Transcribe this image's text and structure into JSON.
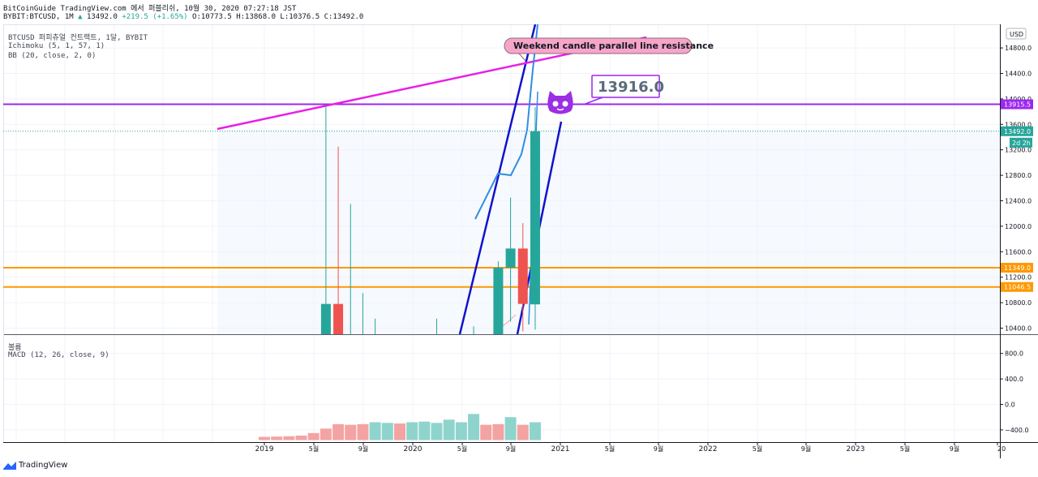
{
  "header": {
    "line1": "BitCoinGuide TradingView.com 에서 퍼블리쉬, 10월 30, 2020 07:27:18 JST",
    "symbol": "BYBIT:BTCUSD, 1M",
    "last": "13492.0",
    "change": "+219.5 (+1.65%)",
    "ohlc": "O:10773.5 H:13868.0 L:10376.5 C:13492.0"
  },
  "legends": {
    "title": "BTCUSD 퍼피츄얼 컨트랙트, 1달, BYBIT",
    "ichimoku": "Ichimoku (5, 1, 57, 1)",
    "bb": "BB (20, close, 2, 0)",
    "volume": "볼륨",
    "macd": "MACD (12, 26, close, 9)"
  },
  "annotations": {
    "callout": "Weekend candle parallel line resistance",
    "price_label": "13916.0"
  },
  "currency_badge": "USD",
  "watermark": "TradingView",
  "colors": {
    "bull": "#26a69a",
    "bear": "#ef5350",
    "magenta": "#e91ee6",
    "violet": "#9c27f0",
    "orange": "#ff9800",
    "blue_channel": "#1212cc",
    "bb_line": "#2f8fe0",
    "callout_fill": "#f6a5c8"
  },
  "chart_data": {
    "type": "candlestick",
    "price_axis": {
      "ticks": [
        10400,
        10800,
        11200,
        11600,
        12000,
        12400,
        12800,
        13200,
        13600,
        14000,
        14400,
        14800
      ]
    },
    "x_axis": {
      "labels": [
        "2019",
        "5월",
        "9월",
        "2020",
        "5월",
        "9월",
        "2021",
        "5월",
        "9월",
        "2022",
        "5월",
        "9월",
        "2023",
        "5월",
        "9월",
        "20"
      ]
    },
    "price_levels": [
      {
        "value": 13915.5,
        "label": "13915.5",
        "color": "#9c27f0"
      },
      {
        "value": 13492.0,
        "label": "13492.0",
        "color": "#26a69a",
        "sublabel": "2d 2h"
      },
      {
        "value": 11349.0,
        "label": "11349.0",
        "color": "#ff9800"
      },
      {
        "value": 11046.5,
        "label": "11046.5",
        "color": "#ff9800"
      }
    ],
    "candles": [
      {
        "month": "2019-05",
        "open": 10300,
        "close": 10780,
        "high": 13900,
        "low": 10300
      },
      {
        "month": "2019-06",
        "open": 10780,
        "close": 10300,
        "high": 13250,
        "low": 10300
      },
      {
        "month": "2019-07",
        "open": 10300,
        "close": 10300,
        "high": 12350,
        "low": 10300
      },
      {
        "month": "2019-08",
        "open": 10300,
        "close": 10300,
        "high": 10950,
        "low": 10300
      },
      {
        "month": "2019-09",
        "open": 10300,
        "close": 10300,
        "high": 10550,
        "low": 10300
      },
      {
        "month": "2020-02",
        "open": 10300,
        "close": 10300,
        "high": 10550,
        "low": 10300
      },
      {
        "month": "2020-05",
        "open": 10300,
        "close": 10300,
        "high": 10430,
        "low": 10300
      },
      {
        "month": "2020-07",
        "open": 10300,
        "close": 11350,
        "high": 11450,
        "low": 10300
      },
      {
        "month": "2020-08",
        "open": 11350,
        "close": 11650,
        "high": 12450,
        "low": 10500
      },
      {
        "month": "2020-09",
        "open": 11650,
        "close": 10780,
        "high": 12050,
        "low": 10350
      },
      {
        "month": "2020-10",
        "open": 10773.5,
        "close": 13492.0,
        "high": 13868.0,
        "low": 10376.5
      }
    ],
    "macd_axis": {
      "ticks": [
        800,
        400,
        0,
        -400
      ]
    },
    "macd_histogram": [
      {
        "month": "2018-12",
        "value": -510
      },
      {
        "month": "2019-01",
        "value": -505
      },
      {
        "month": "2019-02",
        "value": -500
      },
      {
        "month": "2019-03",
        "value": -490
      },
      {
        "month": "2019-04",
        "value": -450
      },
      {
        "month": "2019-05",
        "value": -380
      },
      {
        "month": "2019-06",
        "value": -310
      },
      {
        "month": "2019-07",
        "value": -320
      },
      {
        "month": "2019-08",
        "value": -310
      },
      {
        "month": "2019-09",
        "value": -280
      },
      {
        "month": "2019-10",
        "value": -290
      },
      {
        "month": "2019-11",
        "value": -300
      },
      {
        "month": "2019-12",
        "value": -280
      },
      {
        "month": "2020-01",
        "value": -270
      },
      {
        "month": "2020-02",
        "value": -290
      },
      {
        "month": "2020-03",
        "value": -240
      },
      {
        "month": "2020-04",
        "value": -280
      },
      {
        "month": "2020-05",
        "value": -150
      },
      {
        "month": "2020-06",
        "value": -320
      },
      {
        "month": "2020-07",
        "value": -310
      },
      {
        "month": "2020-08",
        "value": -200
      },
      {
        "month": "2020-09",
        "value": -320
      },
      {
        "month": "2020-10",
        "value": -280
      }
    ]
  }
}
